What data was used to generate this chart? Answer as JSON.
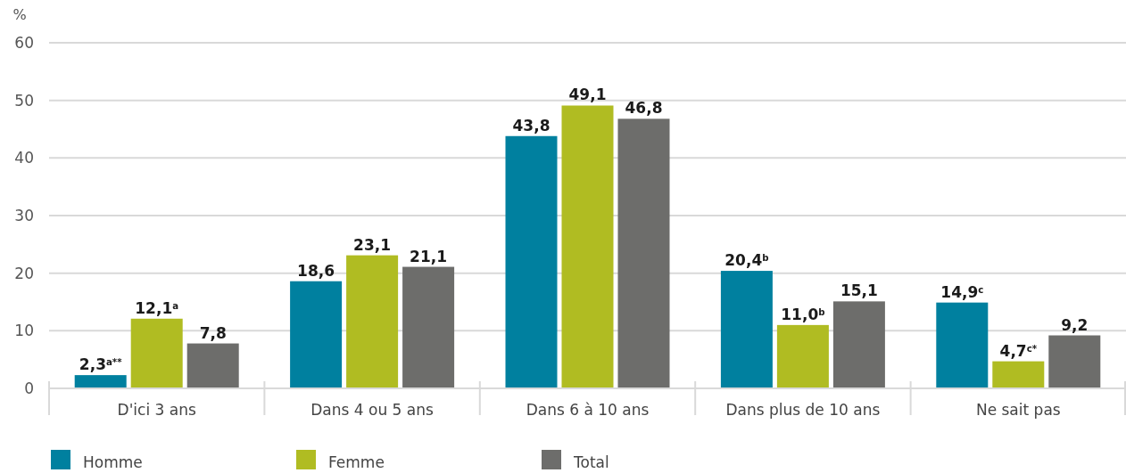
{
  "chart_data": {
    "type": "bar",
    "ylabel": "%",
    "categories": [
      "D'ici 3 ans",
      "Dans 4 ou 5 ans",
      "Dans 6 à 10 ans",
      "Dans plus de 10 ans",
      "Ne sait pas"
    ],
    "series": [
      {
        "name": "Homme",
        "color": "#00809f",
        "values": [
          2.3,
          18.6,
          43.8,
          20.4,
          14.9
        ],
        "value_labels": [
          "2,3$^{a**}$",
          "18,6",
          "43,8",
          "20,4$^{b}$",
          "14,9$^{c}$"
        ]
      },
      {
        "name": "Femme",
        "color": "#b0bc22",
        "values": [
          12.1,
          23.1,
          49.1,
          11.0,
          4.7
        ],
        "value_labels": [
          "12,1$^{a}$",
          "23,1",
          "49,1",
          "11,0$^{b}$",
          "4,7$^{c*}$"
        ]
      },
      {
        "name": "Total",
        "color": "#6d6d6b",
        "values": [
          7.8,
          21.1,
          46.8,
          15.1,
          9.2
        ],
        "value_labels": [
          "7,8",
          "21,1",
          "46,8",
          "15,1",
          "9,2"
        ]
      }
    ],
    "ylim": [
      0,
      60
    ],
    "yticks": [
      0,
      10,
      20,
      30,
      40,
      50,
      60
    ],
    "grid": "y",
    "legend": "bottom"
  }
}
